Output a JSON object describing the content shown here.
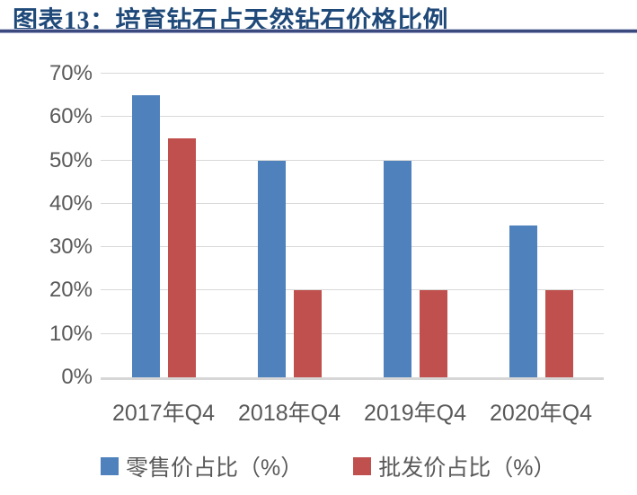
{
  "header": {
    "title": "图表13：培育钻石占天然钻石价格比例"
  },
  "chart_data": {
    "type": "bar",
    "title": "图表13：培育钻石占天然钻石价格比例",
    "categories": [
      "2017年Q4",
      "2018年Q4",
      "2019年Q4",
      "2020年Q4"
    ],
    "series": [
      {
        "key": "retail",
        "name": "零售价占比（%）",
        "color": "#4F81BD",
        "values": [
          65,
          50,
          50,
          35
        ]
      },
      {
        "key": "wholesale",
        "name": "批发价占比（%）",
        "color": "#C0504D",
        "values": [
          55,
          20,
          20,
          20
        ]
      }
    ],
    "xlabel": "",
    "ylabel": "",
    "ylim": [
      0,
      70
    ],
    "yticks": [
      0,
      10,
      20,
      30,
      40,
      50,
      60,
      70
    ],
    "ytick_labels": [
      "0%",
      "10%",
      "20%",
      "30%",
      "40%",
      "50%",
      "60%",
      "70%"
    ],
    "grid": true,
    "legend_position": "bottom"
  },
  "colors": {
    "title": "#1F4979",
    "divider": "#3B4A7E",
    "axis_text": "#595959",
    "gridline": "#D9D9D9",
    "axis_line": "#D6D6D6",
    "series_retail": "#4F81BD",
    "series_wholesale": "#C0504D"
  }
}
